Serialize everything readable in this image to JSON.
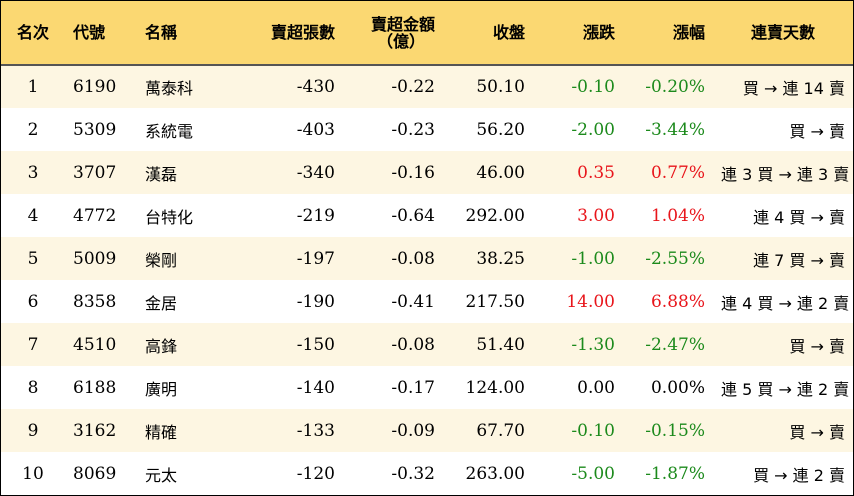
{
  "headers": {
    "rank": "名次",
    "code": "代號",
    "name": "名稱",
    "sell_lots": "賣超張數",
    "sell_amount_line1": "賣超金額",
    "sell_amount_line2": "（億）",
    "close": "收盤",
    "change": "漲跌",
    "change_pct": "漲幅",
    "streak": "連賣天數"
  },
  "colors": {
    "header_bg": "#fbd872",
    "row_odd_bg": "#fdf6e2",
    "up": "#e8151b",
    "down": "#1c8a1c"
  },
  "rows": [
    {
      "rank": "1",
      "code": "6190",
      "name": "萬泰科",
      "sell_lots": "-430",
      "sell_amount": "-0.22",
      "close": "50.10",
      "change": "-0.10",
      "change_pct": "-0.20%",
      "direction": "down",
      "streak": "買 → 連 14 賣"
    },
    {
      "rank": "2",
      "code": "5309",
      "name": "系統電",
      "sell_lots": "-403",
      "sell_amount": "-0.23",
      "close": "56.20",
      "change": "-2.00",
      "change_pct": "-3.44%",
      "direction": "down",
      "streak": "買 → 賣"
    },
    {
      "rank": "3",
      "code": "3707",
      "name": "漢磊",
      "sell_lots": "-340",
      "sell_amount": "-0.16",
      "close": "46.00",
      "change": "0.35",
      "change_pct": "0.77%",
      "direction": "up",
      "streak": "連 3 買 → 連 3 賣"
    },
    {
      "rank": "4",
      "code": "4772",
      "name": "台特化",
      "sell_lots": "-219",
      "sell_amount": "-0.64",
      "close": "292.00",
      "change": "3.00",
      "change_pct": "1.04%",
      "direction": "up",
      "streak": "連 4 買 → 賣"
    },
    {
      "rank": "5",
      "code": "5009",
      "name": "榮剛",
      "sell_lots": "-197",
      "sell_amount": "-0.08",
      "close": "38.25",
      "change": "-1.00",
      "change_pct": "-2.55%",
      "direction": "down",
      "streak": "連 7 買 → 賣"
    },
    {
      "rank": "6",
      "code": "8358",
      "name": "金居",
      "sell_lots": "-190",
      "sell_amount": "-0.41",
      "close": "217.50",
      "change": "14.00",
      "change_pct": "6.88%",
      "direction": "up",
      "streak": "連 4 買 → 連 2 賣"
    },
    {
      "rank": "7",
      "code": "4510",
      "name": "高鋒",
      "sell_lots": "-150",
      "sell_amount": "-0.08",
      "close": "51.40",
      "change": "-1.30",
      "change_pct": "-2.47%",
      "direction": "down",
      "streak": "買 → 賣"
    },
    {
      "rank": "8",
      "code": "6188",
      "name": "廣明",
      "sell_lots": "-140",
      "sell_amount": "-0.17",
      "close": "124.00",
      "change": "0.00",
      "change_pct": "0.00%",
      "direction": "flat",
      "streak": "連 5 買 → 連 2 賣"
    },
    {
      "rank": "9",
      "code": "3162",
      "name": "精確",
      "sell_lots": "-133",
      "sell_amount": "-0.09",
      "close": "67.70",
      "change": "-0.10",
      "change_pct": "-0.15%",
      "direction": "down",
      "streak": "買 → 賣"
    },
    {
      "rank": "10",
      "code": "8069",
      "name": "元太",
      "sell_lots": "-120",
      "sell_amount": "-0.32",
      "close": "263.00",
      "change": "-5.00",
      "change_pct": "-1.87%",
      "direction": "down",
      "streak": "買 → 連 2 賣"
    }
  ]
}
